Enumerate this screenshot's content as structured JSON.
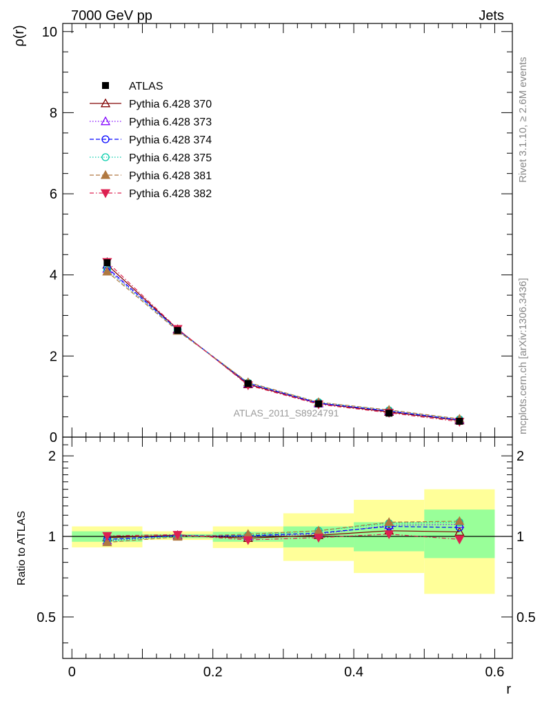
{
  "header": {
    "left": "7000 GeV pp",
    "right": "Jets"
  },
  "side_text": {
    "rivet": "Rivet 3.1.10, ≥ 2.6M events",
    "mcplots": "mcplots.cern.ch [arXiv:1306.3436]"
  },
  "watermark": "ATLAS_2011_S8924791",
  "chart_data": {
    "type": "line",
    "x": [
      0.05,
      0.15,
      0.25,
      0.35,
      0.45,
      0.55
    ],
    "bin_edges": [
      0,
      0.1,
      0.2,
      0.3,
      0.4,
      0.5,
      0.6
    ],
    "main": {
      "ylabel": "ρ(r)",
      "ylim": [
        0,
        10.2
      ],
      "yticks": [
        0,
        2,
        4,
        6,
        8,
        10
      ],
      "xlim": [
        -0.013,
        0.625
      ]
    },
    "ratio": {
      "ylabel": "Ratio to ATLAS",
      "ylim": [
        0.35,
        2.35
      ],
      "log_scale": true,
      "yticks": [
        0.5,
        1,
        2
      ],
      "xticks": [
        0,
        0.2,
        0.4,
        0.6
      ],
      "xlabel": "r"
    },
    "data_series": {
      "name": "ATLAS",
      "values": [
        4.3,
        2.63,
        1.32,
        0.82,
        0.59,
        0.39
      ]
    },
    "bands": {
      "inner": [
        [
          0.955,
          1.045
        ],
        [
          0.985,
          1.02
        ],
        [
          0.955,
          1.04
        ],
        [
          0.91,
          1.09
        ],
        [
          0.88,
          1.13
        ],
        [
          0.83,
          1.26
        ]
      ],
      "outer": [
        [
          0.91,
          1.09
        ],
        [
          0.97,
          1.045
        ],
        [
          0.905,
          1.09
        ],
        [
          0.81,
          1.22
        ],
        [
          0.73,
          1.37
        ],
        [
          0.61,
          1.5
        ]
      ],
      "inner_color": "#99ff99",
      "outer_color": "#ffff99"
    },
    "series": [
      {
        "name": "Pythia 6.428 370",
        "color": "#800000",
        "marker": "triangle-open",
        "dash": "solid",
        "values": [
          4.25,
          2.66,
          1.3,
          0.83,
          0.62,
          0.41
        ],
        "ratio": [
          0.99,
          1.01,
          0.985,
          1.01,
          1.05,
          1.04
        ]
      },
      {
        "name": "Pythia 6.428 373",
        "color": "#8000ff",
        "marker": "triangle-open",
        "dash": "dotted",
        "values": [
          4.15,
          2.64,
          1.32,
          0.83,
          0.65,
          0.43
        ],
        "ratio": [
          0.965,
          1.005,
          1.0,
          1.02,
          1.1,
          1.11
        ]
      },
      {
        "name": "Pythia 6.428 374",
        "color": "#0000ff",
        "marker": "circle-open",
        "dash": "dashed",
        "values": [
          4.18,
          2.65,
          1.33,
          0.84,
          0.64,
          0.42
        ],
        "ratio": [
          0.975,
          1.008,
          1.005,
          1.03,
          1.09,
          1.08
        ]
      },
      {
        "name": "Pythia 6.428 375",
        "color": "#00ccaa",
        "marker": "circle-open",
        "dash": "dotted",
        "values": [
          4.12,
          2.64,
          1.34,
          0.86,
          0.66,
          0.44
        ],
        "ratio": [
          0.96,
          1.004,
          1.01,
          1.05,
          1.12,
          1.13
        ]
      },
      {
        "name": "Pythia 6.428 381",
        "color": "#b07840",
        "marker": "triangle-filled",
        "dash": "dashed",
        "values": [
          4.08,
          2.62,
          1.35,
          0.86,
          0.67,
          0.45
        ],
        "ratio": [
          0.95,
          0.996,
          1.02,
          1.05,
          1.13,
          1.14
        ]
      },
      {
        "name": "Pythia 6.428 382",
        "color": "#dd2050",
        "marker": "triangle-down-filled",
        "dash": "dashdot",
        "values": [
          4.32,
          2.67,
          1.28,
          0.81,
          0.6,
          0.38
        ],
        "ratio": [
          1.005,
          1.015,
          0.97,
          0.99,
          1.02,
          0.975
        ]
      }
    ]
  }
}
